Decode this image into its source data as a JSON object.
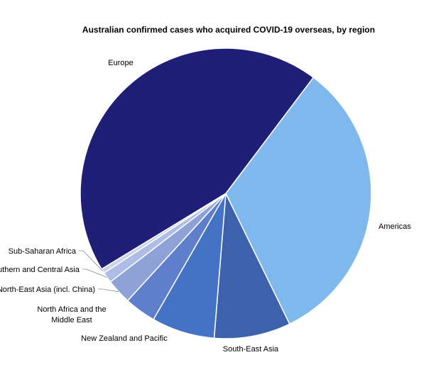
{
  "chart_data": {
    "type": "pie",
    "title": "Australian confirmed cases who acquired COVID-19 overseas, by region",
    "start_angle_deg": 37,
    "slices": [
      {
        "label": "Americas",
        "value": 32.5,
        "color": "#7fb8ec"
      },
      {
        "label": "South-East Asia",
        "value": 8.5,
        "color": "#3d62ad"
      },
      {
        "label": "New Zealand and Pacific",
        "value": 7.0,
        "color": "#4472c4"
      },
      {
        "label": "North Africa and the Middle East",
        "value": 3.5,
        "color": "#5f7fcc"
      },
      {
        "label": "North-East Asia (incl. China)",
        "value": 2.8,
        "color": "#8fa2d8"
      },
      {
        "label": "Southern and Central Asia",
        "value": 1.2,
        "color": "#aebde6"
      },
      {
        "label": "Sub-Saharan Africa",
        "value": 0.5,
        "color": "#c8d2ee"
      },
      {
        "label": "Europe",
        "value": 44.0,
        "color": "#1f1f78"
      }
    ]
  }
}
